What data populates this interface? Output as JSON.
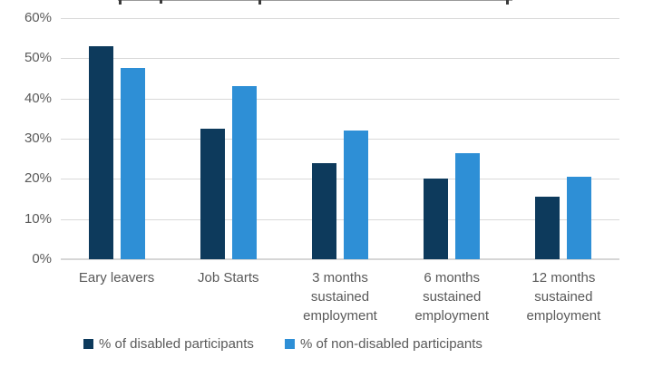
{
  "chart_data": {
    "type": "bar",
    "title_cropped": true,
    "categories": [
      "Eary leavers",
      "Job Starts",
      "3 months\nsustained\nemployment",
      "6 months\nsustained\nemployment",
      "12 months\nsustained\nemployment"
    ],
    "series": [
      {
        "name": "% of disabled participants",
        "color": "#0d3a5c",
        "values": [
          53,
          32.5,
          24,
          20,
          15.5
        ]
      },
      {
        "name": "% of non-disabled participants",
        "color": "#2e8fd6",
        "values": [
          47.5,
          43,
          32,
          26.5,
          20.5
        ]
      }
    ],
    "y_axis": {
      "ticks": [
        "0%",
        "10%",
        "20%",
        "30%",
        "40%",
        "50%",
        "60%"
      ],
      "min": 0,
      "max": 60,
      "grid": true
    },
    "legend_position": "bottom",
    "colors": {
      "gridline": "#d9d9d9",
      "axis_text": "#595959",
      "background": "#ffffff"
    }
  }
}
